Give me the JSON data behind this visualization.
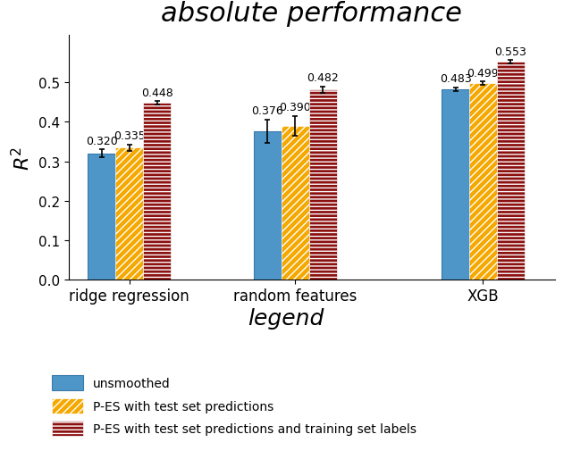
{
  "title": "absolute performance",
  "ylabel": "$R^2$",
  "xlabel": "legend",
  "categories": [
    "ridge regression",
    "random features",
    "XGB"
  ],
  "bar_width": 0.25,
  "group_centers": [
    1.0,
    2.5,
    4.2
  ],
  "values": {
    "unsmoothed": [
      0.32,
      0.376,
      0.483
    ],
    "pes_test": [
      0.335,
      0.39,
      0.499
    ],
    "pes_both": [
      0.448,
      0.482,
      0.553
    ]
  },
  "errors": {
    "unsmoothed": [
      0.01,
      0.03,
      0.005
    ],
    "pes_test": [
      0.008,
      0.025,
      0.004
    ],
    "pes_both": [
      0.005,
      0.008,
      0.004
    ]
  },
  "colors": {
    "unsmoothed": "#4F96C8",
    "pes_test": "#F5A800",
    "pes_both": "#8B1010"
  },
  "ylim": [
    0.0,
    0.62
  ],
  "yticks": [
    0.0,
    0.1,
    0.2,
    0.3,
    0.4,
    0.5
  ],
  "legend_labels": [
    "unsmoothed",
    "P-ES with test set predictions",
    "P-ES with test set predictions and training set labels"
  ],
  "annotation_fontsize": 9,
  "title_fontsize": 22,
  "xlabel_fontsize": 18,
  "ylabel_fontsize": 16,
  "tick_fontsize": 12,
  "legend_fontsize": 10
}
